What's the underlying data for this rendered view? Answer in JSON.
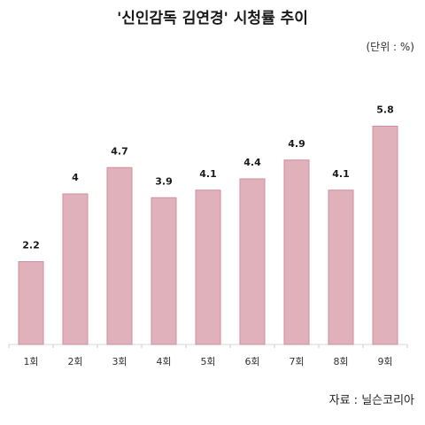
{
  "header": {
    "title": "'신인감독 김연경' 시청률 추이",
    "unit": "(단위 : %)"
  },
  "footer": {
    "source": "자료 : 닐슨코리아"
  },
  "chart_data": {
    "type": "bar",
    "title": "'신인감독 김연경' 시청률 추이",
    "xlabel": "",
    "ylabel": "",
    "categories": [
      "1회",
      "2회",
      "3회",
      "4회",
      "5회",
      "6회",
      "7회",
      "8회",
      "9회"
    ],
    "values": [
      2.2,
      4,
      4.7,
      3.9,
      4.1,
      4.4,
      4.9,
      4.1,
      5.8
    ],
    "value_labels": [
      "2.2",
      "4",
      "4.7",
      "3.9",
      "4.1",
      "4.4",
      "4.9",
      "4.1",
      "5.8"
    ],
    "ylim": [
      0,
      6.5
    ],
    "grid": false,
    "colors": {
      "bar_fill": "#e0b0bb",
      "bar_stroke": "#cf8f9e"
    }
  }
}
